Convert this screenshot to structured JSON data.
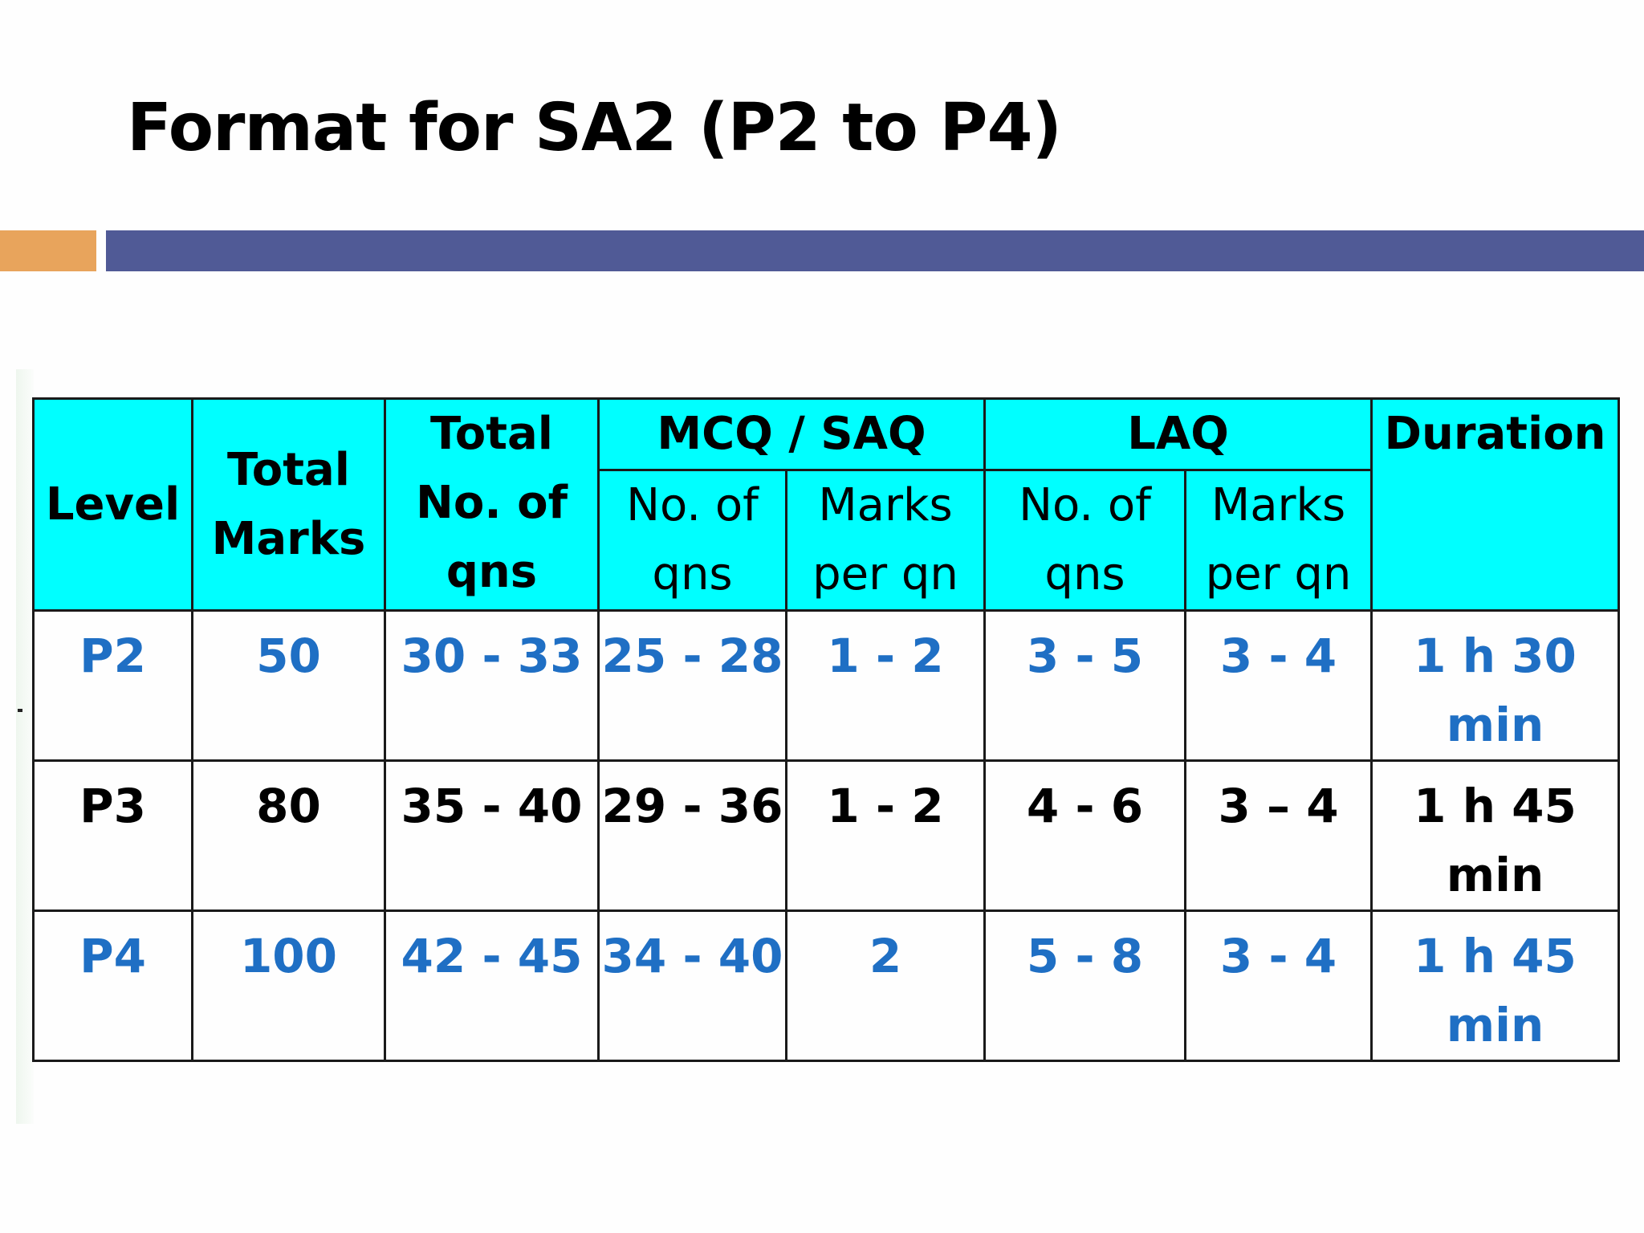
{
  "title": "Format for SA2 (P2 to P4)",
  "colors": {
    "accent_bar": "#e8a45c",
    "title_bar": "#505a96",
    "header_bg": "#00ffff",
    "blue_text": "#1f6fc4",
    "black_text": "#000000"
  },
  "table": {
    "headers": {
      "level": "Level",
      "total_marks": "Total Marks",
      "total_qns": "Total No. of qns",
      "mcq_saq": "MCQ / SAQ",
      "laq": "LAQ",
      "duration": "Duration",
      "mcq_no_of_qns": "No. of qns",
      "mcq_marks_per_qn": "Marks per qn",
      "laq_no_of_qns": "No. of qns",
      "laq_marks_per_qn": "Marks per qn"
    },
    "rows": [
      {
        "level": "P2",
        "total_marks": "50",
        "total_qns": "30 - 33",
        "mcq_no_of_qns": "25 - 28",
        "mcq_marks_per_qn": "1 - 2",
        "laq_no_of_qns": "3 - 5",
        "laq_marks_per_qn": "3 - 4",
        "duration": "1 h 30 min",
        "color": "#1f6fc4"
      },
      {
        "level": "P3",
        "total_marks": "80",
        "total_qns": "35 - 40",
        "mcq_no_of_qns": "29 - 36",
        "mcq_marks_per_qn": "1 - 2",
        "laq_no_of_qns": "4 - 6",
        "laq_marks_per_qn": "3 – 4",
        "duration": "1 h 45 min",
        "color": "#000000"
      },
      {
        "level": "P4",
        "total_marks": "100",
        "total_qns": "42 - 45",
        "mcq_no_of_qns": "34 - 40",
        "mcq_marks_per_qn": "2",
        "laq_no_of_qns": "5 - 8",
        "laq_marks_per_qn": "3 - 4",
        "duration": "1 h 45 min",
        "color": "#1f6fc4"
      }
    ]
  }
}
